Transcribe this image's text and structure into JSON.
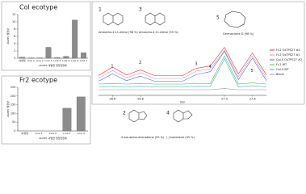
{
  "chart_data": [
    {
      "type": "bar",
      "title": "Col ecotype",
      "y_label": "AtoPP1 발현량",
      "x_label": "AtoPP1 과발현 형질전환체",
      "categories": [
        "야생형",
        "Line 1",
        "Line 2",
        "Line 3",
        "Line 4",
        "Line 5",
        "Line 6",
        "Line 7"
      ],
      "values": [
        0.3,
        0.1,
        0.1,
        3,
        0.2,
        0.5,
        10.5,
        1.5
      ],
      "color": "#8c8c8c",
      "ylim": [
        0,
        12
      ],
      "yticks": [
        0,
        2,
        4,
        6,
        8,
        10,
        12
      ]
    },
    {
      "type": "bar",
      "title": "Fr2 ecotype",
      "y_label": "AtoPP1 발현량",
      "x_label": "AtoPP1 과발현 형질전환체",
      "categories": [
        "야생형",
        "Line 1",
        "Line 2",
        "Line 3",
        "Line 4"
      ],
      "values": [
        0,
        0,
        0,
        130,
        195
      ],
      "color": "#8c8c8c",
      "ylim": [
        0,
        250
      ],
      "yticks": [
        0,
        50,
        100,
        150,
        200,
        250
      ]
    },
    {
      "type": "line",
      "x_label": "min",
      "x": [
        26.5,
        26.6,
        26.7,
        26.8,
        26.9,
        27.0,
        27.1,
        27.2,
        27.3,
        27.4,
        27.5,
        27.6,
        27.7
      ],
      "xlim": [
        26.5,
        27.7
      ],
      "xticks": [
        26.6,
        26.8,
        27.4,
        27.6
      ],
      "ylim": [
        0,
        100
      ],
      "peak_labels": [
        "1",
        "2",
        "3",
        "4",
        "5"
      ],
      "series": [
        {
          "name": "Fr-2 OxTPS27 #4",
          "color": "#e03030",
          "values": [
            35,
            50,
            36,
            45,
            35,
            35,
            35,
            48,
            52,
            85,
            38,
            75,
            36
          ]
        },
        {
          "name": "Fr-2 OxTPS27 #1",
          "color": "#e58fb0",
          "values": [
            30,
            44,
            31,
            40,
            30,
            30,
            30,
            43,
            47,
            80,
            33,
            70,
            31
          ]
        },
        {
          "name": "Col-0 OxTPS27 #2",
          "color": "#4a6fd0",
          "values": [
            25,
            38,
            26,
            34,
            25,
            25,
            25,
            37,
            42,
            78,
            28,
            66,
            26
          ]
        },
        {
          "name": "Fr-2 WT",
          "color": "#5cb85c",
          "values": [
            20,
            21,
            20,
            21,
            20,
            20,
            20,
            21,
            21,
            70,
            20,
            22,
            20
          ]
        },
        {
          "name": "Col-0 WT",
          "color": "#3cb4b4",
          "values": [
            15,
            16,
            15,
            16,
            15,
            15,
            15,
            16,
            16,
            65,
            15,
            17,
            15
          ]
        },
        {
          "name": "Blank",
          "color": "#999999",
          "values": [
            10,
            10,
            10,
            10,
            10,
            10,
            10,
            10,
            10,
            12,
            10,
            10,
            10
          ]
        }
      ]
    }
  ],
  "structures": [
    {
      "number": "1",
      "name": "Amorpha-4,11-diene (98 %)"
    },
    {
      "number": "3",
      "name": "Amorpha-4,11-diene (95 %)"
    },
    {
      "number": "5",
      "name": "Germacrene D (98 %)"
    },
    {
      "number": "2",
      "name": "4-epi-alpha-Acoradiene (95 %)"
    },
    {
      "number": "4",
      "name": "(-)-Isoledene (95 %)"
    }
  ]
}
